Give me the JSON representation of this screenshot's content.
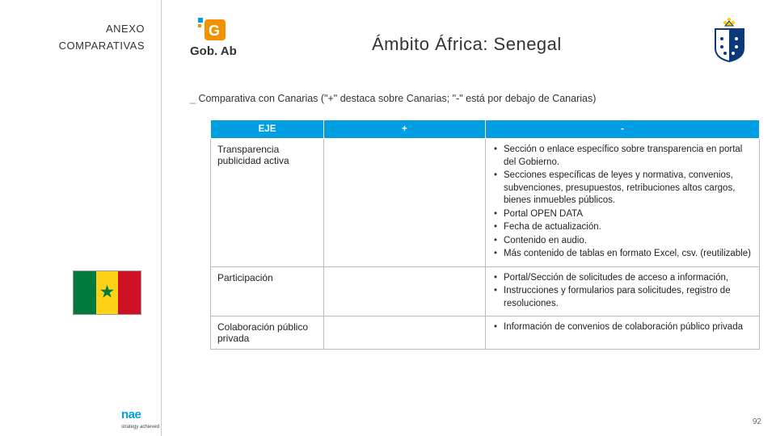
{
  "sidebar": {
    "line1": "ANEXO",
    "line2": "COMPARATIVAS"
  },
  "title": "Ámbito África: Senegal",
  "subtitle": "Comparativa con Canarias (\"+\" destaca sobre Canarias; \"-\" está por debajo de Canarias)",
  "flag": {
    "stripe_colors": [
      "#007a3d",
      "#fdd116",
      "#ce1126"
    ],
    "star_color": "#007a3d"
  },
  "table": {
    "headers": [
      "EJE",
      "+",
      "-"
    ],
    "header_bg": "#009fe3",
    "rows": [
      {
        "eje": "Transparencia publicidad activa",
        "plus": "",
        "minus": [
          "Sección o enlace específico sobre transparencia en portal del Gobierno.",
          "Secciones específicas de leyes y normativa, convenios, subvenciones, presupuestos, retribuciones altos cargos, bienes inmuebles públicos.",
          "Portal OPEN DATA",
          "Fecha de actualización.",
          "Contenido en audio.",
          "Más contenido de tablas en formato Excel, csv. (reutilizable)"
        ]
      },
      {
        "eje": "Participación",
        "plus": "",
        "minus": [
          "Portal/Sección de solicitudes de acceso a información,",
          "Instrucciones y formularios para solicitudes, registro de resoluciones."
        ]
      },
      {
        "eje": "Colaboración público privada",
        "plus": "",
        "minus": [
          "Información de convenios de colaboración público privada"
        ]
      }
    ]
  },
  "footer": {
    "brand": "nae",
    "brand_sub": "strategy achieved",
    "page": "92"
  },
  "logos": {
    "gobab_colors": {
      "orange": "#f39200",
      "dark": "#333333"
    },
    "canarias_colors": {
      "blue": "#0a3a7a",
      "yellow": "#ffcc00"
    }
  }
}
